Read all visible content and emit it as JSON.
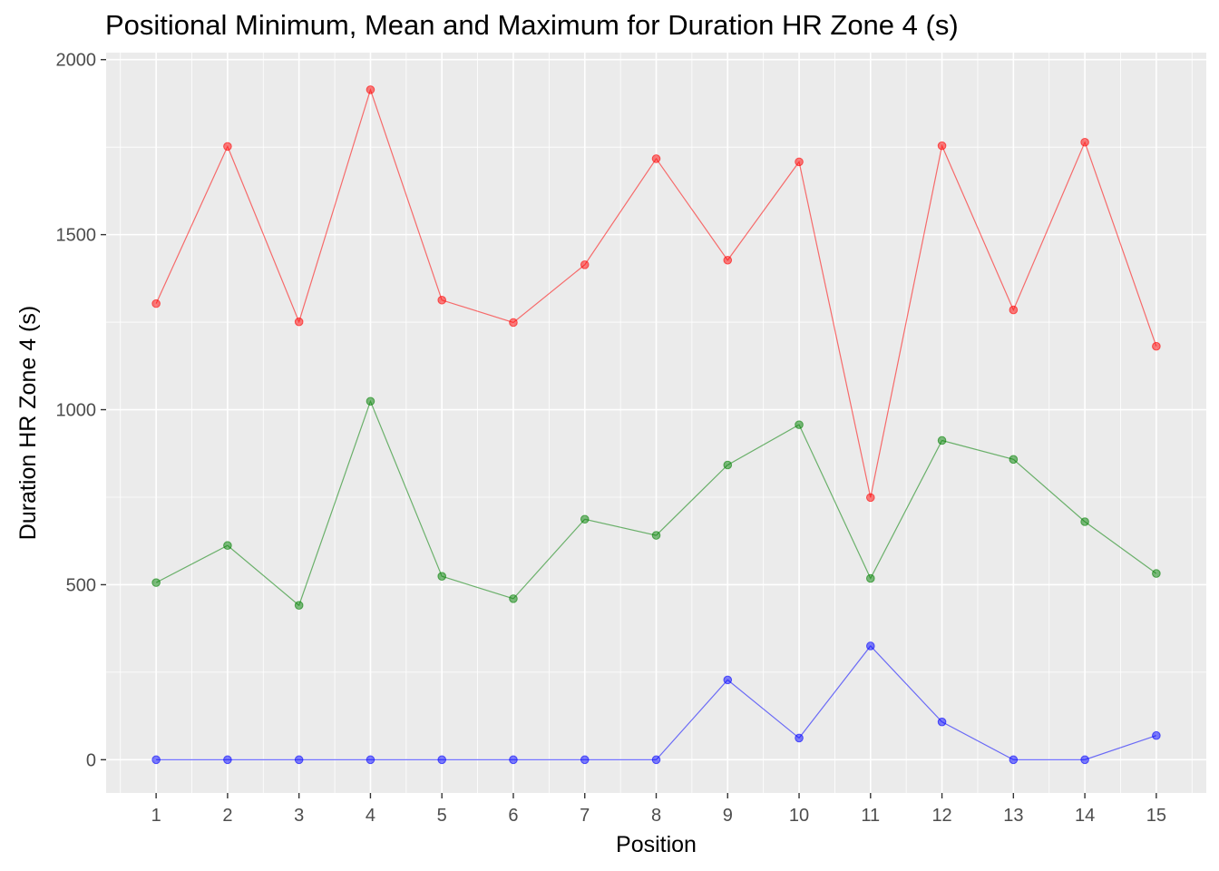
{
  "chart_data": {
    "type": "line",
    "title": "Positional Minimum, Mean and Maximum for Duration HR Zone 4 (s)",
    "xlabel": "Position",
    "ylabel": "Duration HR Zone 4 (s)",
    "x": [
      1,
      2,
      3,
      4,
      5,
      6,
      7,
      8,
      9,
      10,
      11,
      12,
      13,
      14,
      15
    ],
    "xlim": [
      0.3,
      15.7
    ],
    "ylim": [
      -95,
      2020
    ],
    "yticks": [
      0,
      500,
      1000,
      1500,
      2000
    ],
    "grid": true,
    "legend": "none",
    "panel_background": "#ebebeb",
    "grid_color": "#ffffff",
    "series": [
      {
        "color": "#f8766d",
        "stroke": "#ff0000",
        "values": [
          1303,
          1752,
          1251,
          1914,
          1313,
          1249,
          1414,
          1717,
          1427,
          1708,
          749,
          1754,
          1285,
          1764,
          1181
        ]
      },
      {
        "color": "#00a000",
        "stroke": "#008000",
        "values": [
          506,
          612,
          441,
          1024,
          524,
          460,
          687,
          641,
          842,
          957,
          518,
          912,
          858,
          680,
          532
        ]
      },
      {
        "color": "#0000ff",
        "stroke": "#0000ff",
        "values": [
          0,
          0,
          0,
          0,
          0,
          0,
          0,
          0,
          228,
          62,
          325,
          108,
          0,
          0,
          69
        ]
      }
    ]
  }
}
